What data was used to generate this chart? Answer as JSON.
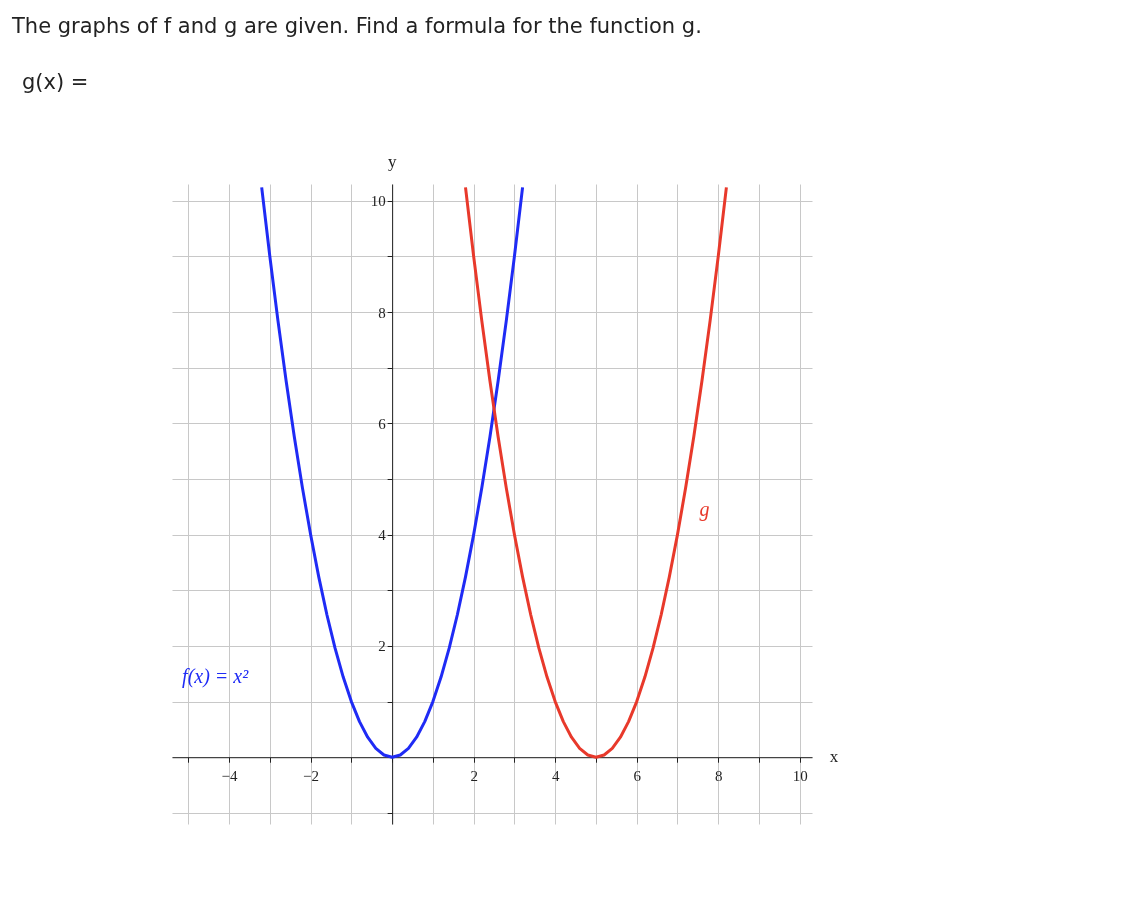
{
  "chart_data": {
    "type": "line",
    "title": "The graphs of f and g are given. Find a formula for the function g.",
    "subtitle": "g(x) =",
    "xlabel": "x",
    "ylabel": "y",
    "xlim": [
      -5.4,
      10.3
    ],
    "ylim": [
      -1.2,
      10.3
    ],
    "xticks": [
      {
        "value": -5,
        "label": null
      },
      -4,
      {
        "value": -3,
        "label": null
      },
      -2,
      {
        "value": -1,
        "label": null
      },
      {
        "value": 0,
        "label": null
      },
      {
        "value": 1,
        "label": null
      },
      2,
      {
        "value": 3,
        "label": null
      },
      4,
      {
        "value": 5,
        "label": null
      },
      6,
      {
        "value": 7,
        "label": null
      },
      8,
      {
        "value": 9,
        "label": null
      },
      10
    ],
    "yticks": [
      {
        "value": -1,
        "label": null
      },
      {
        "value": 0,
        "label": null
      },
      {
        "value": 1,
        "label": null
      },
      2,
      {
        "value": 3,
        "label": null
      },
      4,
      {
        "value": 5,
        "label": null
      },
      6,
      {
        "value": 7,
        "label": null
      },
      8,
      {
        "value": 9,
        "label": null
      },
      10
    ],
    "grid": true,
    "line_style": "solid",
    "marker": "none",
    "series": [
      {
        "name": "f(x) = x²",
        "color": "#1f2bf5",
        "x": [
          -3.2,
          -3.0,
          -2.8,
          -2.6,
          -2.4,
          -2.2,
          -2.0,
          -1.8,
          -1.6,
          -1.4,
          -1.2,
          -1.0,
          -0.8,
          -0.6,
          -0.4,
          -0.2,
          0.0,
          0.2,
          0.4,
          0.6,
          0.8,
          1.0,
          1.2,
          1.4,
          1.6,
          1.8,
          2.0,
          2.2,
          2.4,
          2.6,
          2.8,
          3.0,
          3.2
        ],
        "values": [
          10.24,
          9.0,
          7.84,
          6.76,
          5.76,
          4.84,
          4.0,
          3.24,
          2.56,
          1.96,
          1.44,
          1.0,
          0.64,
          0.36,
          0.16,
          0.04,
          0.0,
          0.04,
          0.16,
          0.36,
          0.64,
          1.0,
          1.44,
          1.96,
          2.56,
          3.24,
          4.0,
          4.84,
          5.76,
          6.76,
          7.84,
          9.0,
          10.24
        ]
      },
      {
        "name": "g",
        "color": "#e8392b",
        "x": [
          1.8,
          2.0,
          2.2,
          2.4,
          2.6,
          2.8,
          3.0,
          3.2,
          3.4,
          3.6,
          3.8,
          4.0,
          4.2,
          4.4,
          4.6,
          4.8,
          5.0,
          5.2,
          5.4,
          5.6,
          5.8,
          6.0,
          6.2,
          6.4,
          6.6,
          6.8,
          7.0,
          7.2,
          7.4,
          7.6,
          7.8,
          8.0,
          8.2
        ],
        "values": [
          10.24,
          9.0,
          7.84,
          6.76,
          5.76,
          4.84,
          4.0,
          3.24,
          2.56,
          1.96,
          1.44,
          1.0,
          0.64,
          0.36,
          0.16,
          0.04,
          0.0,
          0.04,
          0.16,
          0.36,
          0.64,
          1.0,
          1.44,
          1.96,
          2.56,
          3.24,
          4.0,
          4.84,
          5.76,
          6.76,
          7.84,
          9.0,
          10.24
        ]
      }
    ]
  }
}
